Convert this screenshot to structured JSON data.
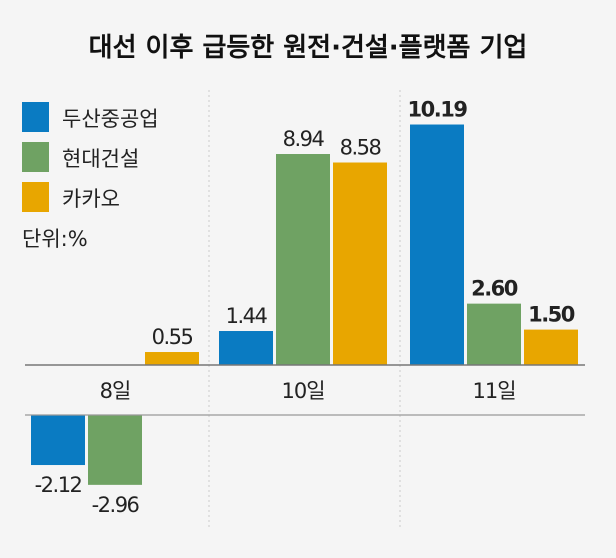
{
  "chart_data": {
    "type": "bar",
    "title": "대선 이후 급등한 원전·건설·플랫폼 기업",
    "unit_label": "단위:%",
    "categories": [
      "8일",
      "10일",
      "11일"
    ],
    "series": [
      {
        "name": "두산중공업",
        "color": "#0a7bc2",
        "values": [
          -2.12,
          1.44,
          10.19
        ],
        "labels": [
          "-2.12",
          "1.44",
          "10.19"
        ]
      },
      {
        "name": "현대건설",
        "color": "#6fa263",
        "values": [
          -2.96,
          8.94,
          2.6
        ],
        "labels": [
          "-2.96",
          "8.94",
          "2.60"
        ]
      },
      {
        "name": "카카오",
        "color": "#e8a600",
        "values": [
          0.55,
          8.58,
          1.5
        ],
        "labels": [
          "0.55",
          "8.58",
          "1.50"
        ]
      }
    ],
    "bold_category": "11일",
    "legend_position": "top-left",
    "grid": false
  }
}
